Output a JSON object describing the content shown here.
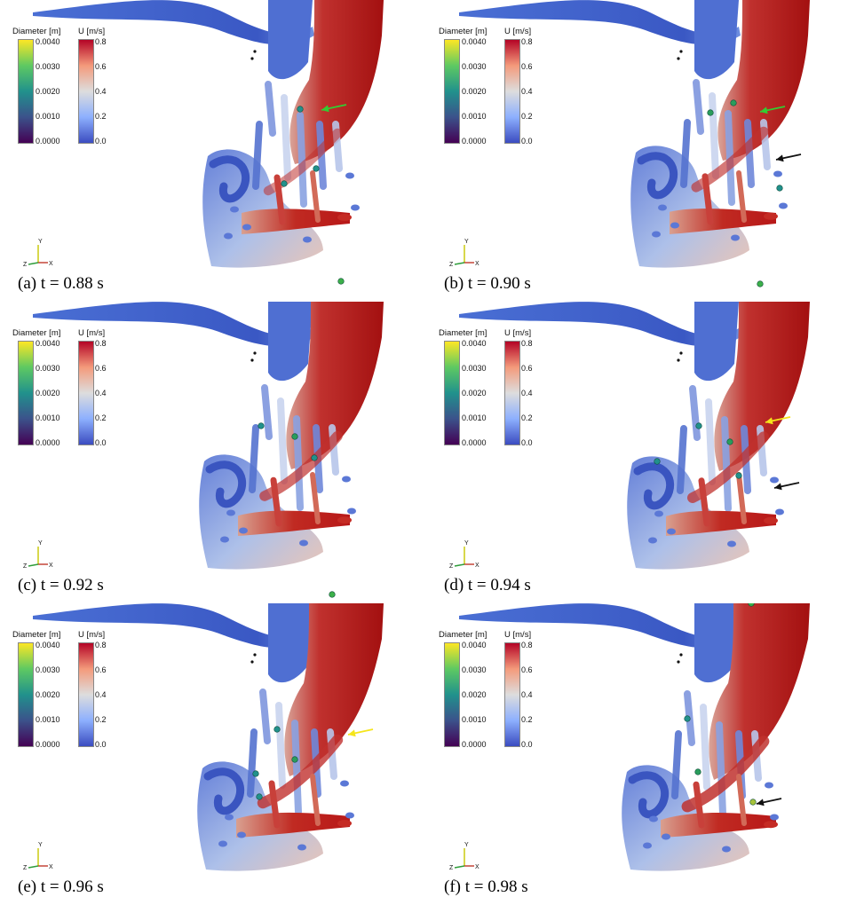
{
  "colorbars": {
    "diameter": {
      "title": "Diameter [m]",
      "ticks": [
        "0.0040",
        "0.0030",
        "0.0020",
        "0.0010",
        "0.0000"
      ],
      "colormap": [
        "#440154",
        "#3b528b",
        "#21918c",
        "#5ec962",
        "#fde725"
      ]
    },
    "velocity": {
      "title": "U [m/s]",
      "ticks": [
        "0.8",
        "0.6",
        "0.4",
        "0.2",
        "0.0"
      ],
      "colormap": [
        "#3b4cc0",
        "#8db0fe",
        "#dddddd",
        "#f49a7b",
        "#b40426"
      ]
    }
  },
  "axes": {
    "y": "Y",
    "z": "Z",
    "x": "X"
  },
  "panels": [
    {
      "caption": "(a) t = 0.88 s",
      "arrows": [
        {
          "color": "#33cc33"
        }
      ]
    },
    {
      "caption": "(b) t = 0.90 s",
      "arrows": [
        {
          "color": "#33cc33"
        },
        {
          "color": "#111111"
        }
      ]
    },
    {
      "caption": "(c) t = 0.92 s",
      "arrows": []
    },
    {
      "caption": "(d) t = 0.94 s",
      "arrows": [
        {
          "color": "#f5e51b"
        },
        {
          "color": "#111111"
        }
      ]
    },
    {
      "caption": "(e) t = 0.96 s",
      "arrows": [
        {
          "color": "#f5e51b"
        }
      ]
    },
    {
      "caption": "(f) t = 0.98 s",
      "arrows": [
        {
          "color": "#111111"
        }
      ]
    }
  ]
}
